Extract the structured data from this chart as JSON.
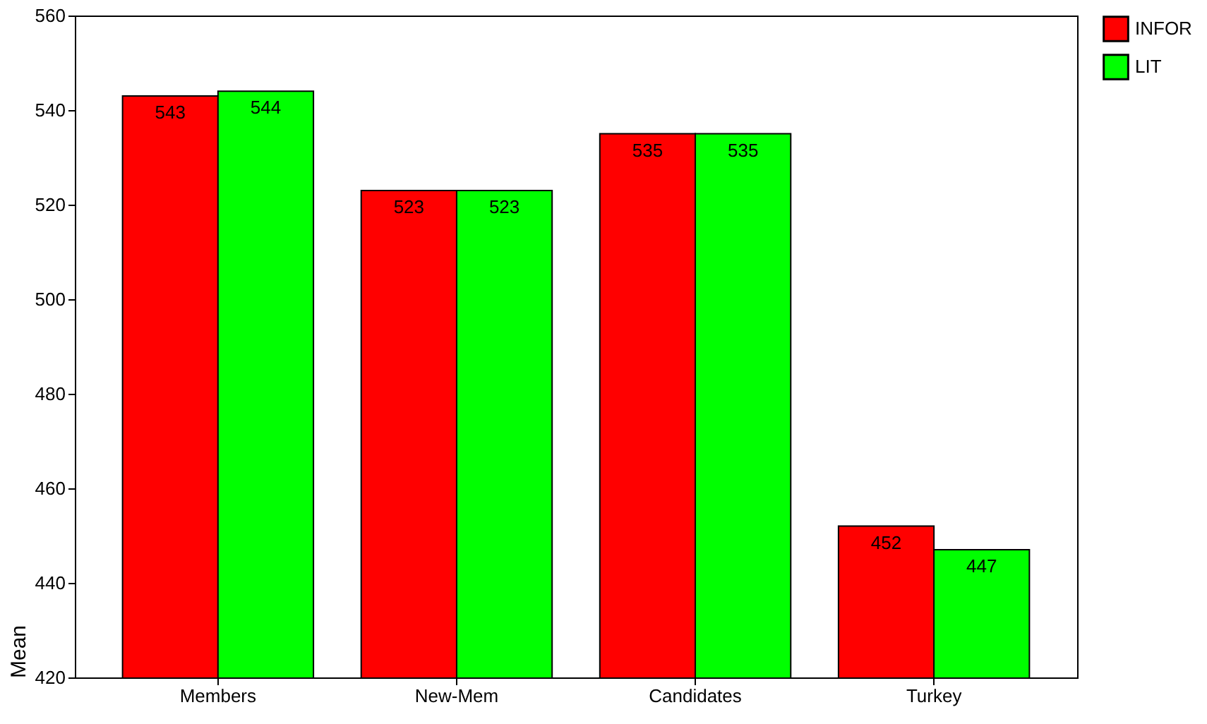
{
  "chart_data": {
    "type": "bar",
    "ylabel": "Mean",
    "categories": [
      "Members",
      "New-Mem",
      "Candidates",
      "Turkey"
    ],
    "series": [
      {
        "name": "INFOR",
        "color": "#ff0000",
        "values": [
          543,
          523,
          535,
          452
        ]
      },
      {
        "name": "LIT",
        "color": "#00ff00",
        "values": [
          544,
          523,
          535,
          447
        ]
      }
    ],
    "ylim": [
      420,
      560
    ],
    "yticks": [
      420,
      440,
      460,
      480,
      500,
      520,
      540,
      560
    ],
    "grid": false,
    "legend": "right",
    "data_labels": true
  }
}
